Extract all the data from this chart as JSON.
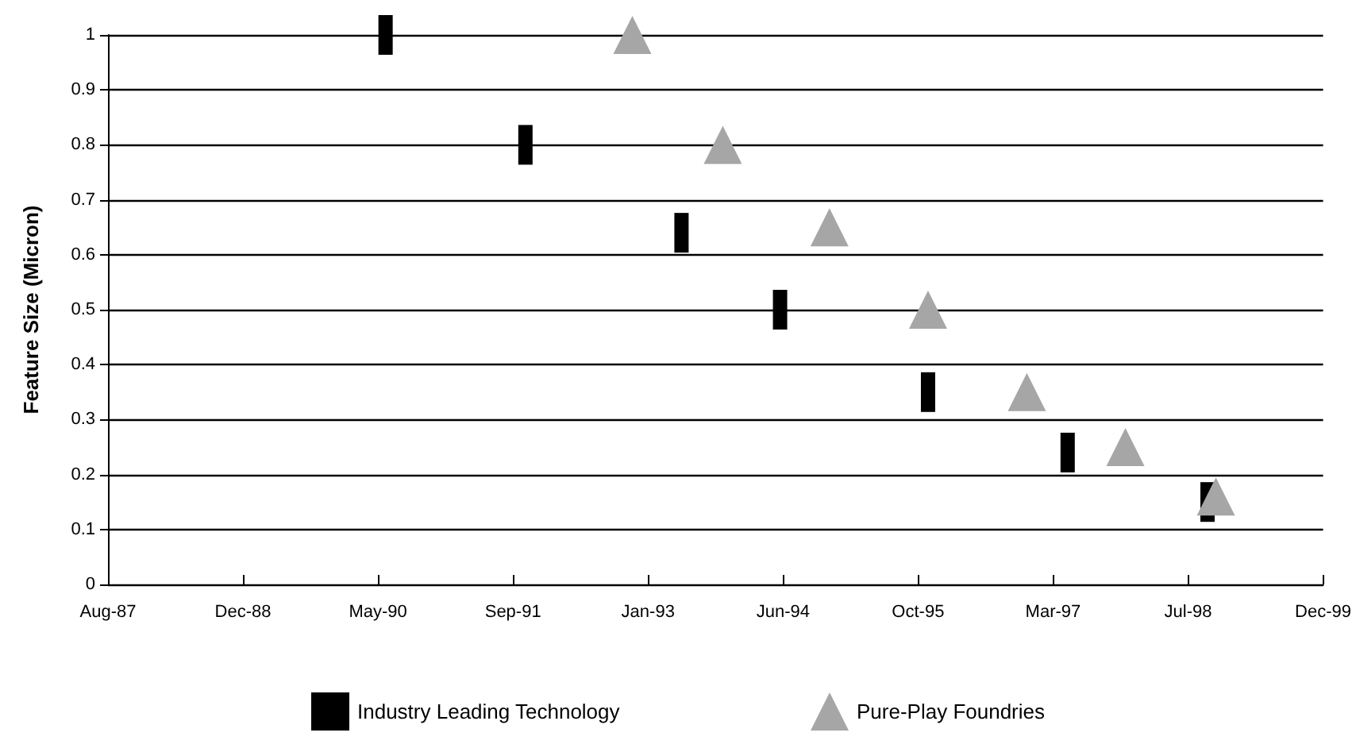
{
  "chart_data": {
    "type": "scatter",
    "ylabel": "Feature Size (Micron)",
    "xlim": [
      "1987-08-08",
      "1999-12-03"
    ],
    "xticks": [
      {
        "value": "1987-08-08",
        "label": "Aug-87"
      },
      {
        "value": "1988-12-20",
        "label": "Dec-88"
      },
      {
        "value": "1990-05-04",
        "label": "May-90"
      },
      {
        "value": "1991-09-16",
        "label": "Sep-91"
      },
      {
        "value": "1993-01-28",
        "label": "Jan-93"
      },
      {
        "value": "1994-06-12",
        "label": "Jun-94"
      },
      {
        "value": "1995-10-25",
        "label": "Oct-95"
      },
      {
        "value": "1997-03-08",
        "label": "Mar-97"
      },
      {
        "value": "1998-07-21",
        "label": "Jul-98"
      },
      {
        "value": "1999-12-03",
        "label": "Dec-99"
      }
    ],
    "ylim": [
      0,
      1
    ],
    "yticks": [
      0,
      0.1,
      0.2,
      0.3,
      0.4,
      0.5,
      0.6,
      0.7,
      0.8,
      0.9,
      1
    ],
    "grid": "y",
    "legend": "bottom",
    "series": [
      {
        "name": "Industry Leading Technology",
        "color": "#000000",
        "marker": "square",
        "x": [
          "1990-06",
          "1991-11",
          "1993-06",
          "1994-06",
          "1995-12",
          "1997-05",
          "1998-10"
        ],
        "values": [
          1.0,
          0.8,
          0.64,
          0.5,
          0.35,
          0.24,
          0.15
        ]
      },
      {
        "name": "Pure-Play Foundries",
        "color": "#a6a6a6",
        "marker": "triangle",
        "x": [
          "1992-12",
          "1993-11",
          "1994-12",
          "1995-12",
          "1996-12",
          "1997-12",
          "1998-11"
        ],
        "values": [
          1.0,
          0.8,
          0.65,
          0.5,
          0.35,
          0.25,
          0.16
        ]
      }
    ]
  }
}
